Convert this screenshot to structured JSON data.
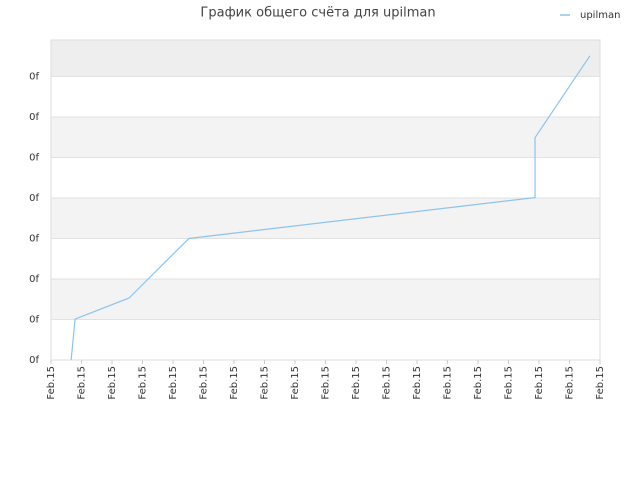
{
  "chart_data": {
    "type": "line",
    "title": "График общего счёта для upilman",
    "series": [
      {
        "name": "upilman",
        "color": "#8cc4ef",
        "x": [
          0.66,
          0.79,
          2.56,
          4.52,
          15.87,
          15.87,
          17.67
        ],
        "values": [
          0,
          1.01,
          1.53,
          3.0,
          4.01,
          5.49,
          7.51
        ]
      }
    ],
    "xlim": [
      0,
      18
    ],
    "xticks": [
      {
        "value": 0,
        "label": "Feb.15"
      },
      {
        "value": 1,
        "label": "Feb.15"
      },
      {
        "value": 2,
        "label": "Feb.15"
      },
      {
        "value": 3,
        "label": "Feb.15"
      },
      {
        "value": 4,
        "label": "Feb.15"
      },
      {
        "value": 5,
        "label": "Feb.15"
      },
      {
        "value": 6,
        "label": "Feb.15"
      },
      {
        "value": 7,
        "label": "Feb.15"
      },
      {
        "value": 8,
        "label": "Feb.15"
      },
      {
        "value": 9,
        "label": "Feb.15"
      },
      {
        "value": 10,
        "label": "Feb.15"
      },
      {
        "value": 11,
        "label": "Feb.15"
      },
      {
        "value": 12,
        "label": "Feb.15"
      },
      {
        "value": 13,
        "label": "Feb.15"
      },
      {
        "value": 14,
        "label": "Feb.15"
      },
      {
        "value": 15,
        "label": "Feb.15"
      },
      {
        "value": 16,
        "label": "Feb.15"
      },
      {
        "value": 17,
        "label": "Feb.15"
      },
      {
        "value": 18,
        "label": "Feb.15"
      }
    ],
    "ylim": [
      0,
      7.9
    ],
    "yticks": [
      {
        "value": 0,
        "label": "0f"
      },
      {
        "value": 1,
        "label": "0f"
      },
      {
        "value": 2,
        "label": "0f"
      },
      {
        "value": 3,
        "label": "0f"
      },
      {
        "value": 4,
        "label": "0f"
      },
      {
        "value": 5,
        "label": "0f"
      },
      {
        "value": 6,
        "label": "0f"
      },
      {
        "value": 7,
        "label": "0f"
      }
    ],
    "grid": true,
    "legend": "top-right"
  }
}
